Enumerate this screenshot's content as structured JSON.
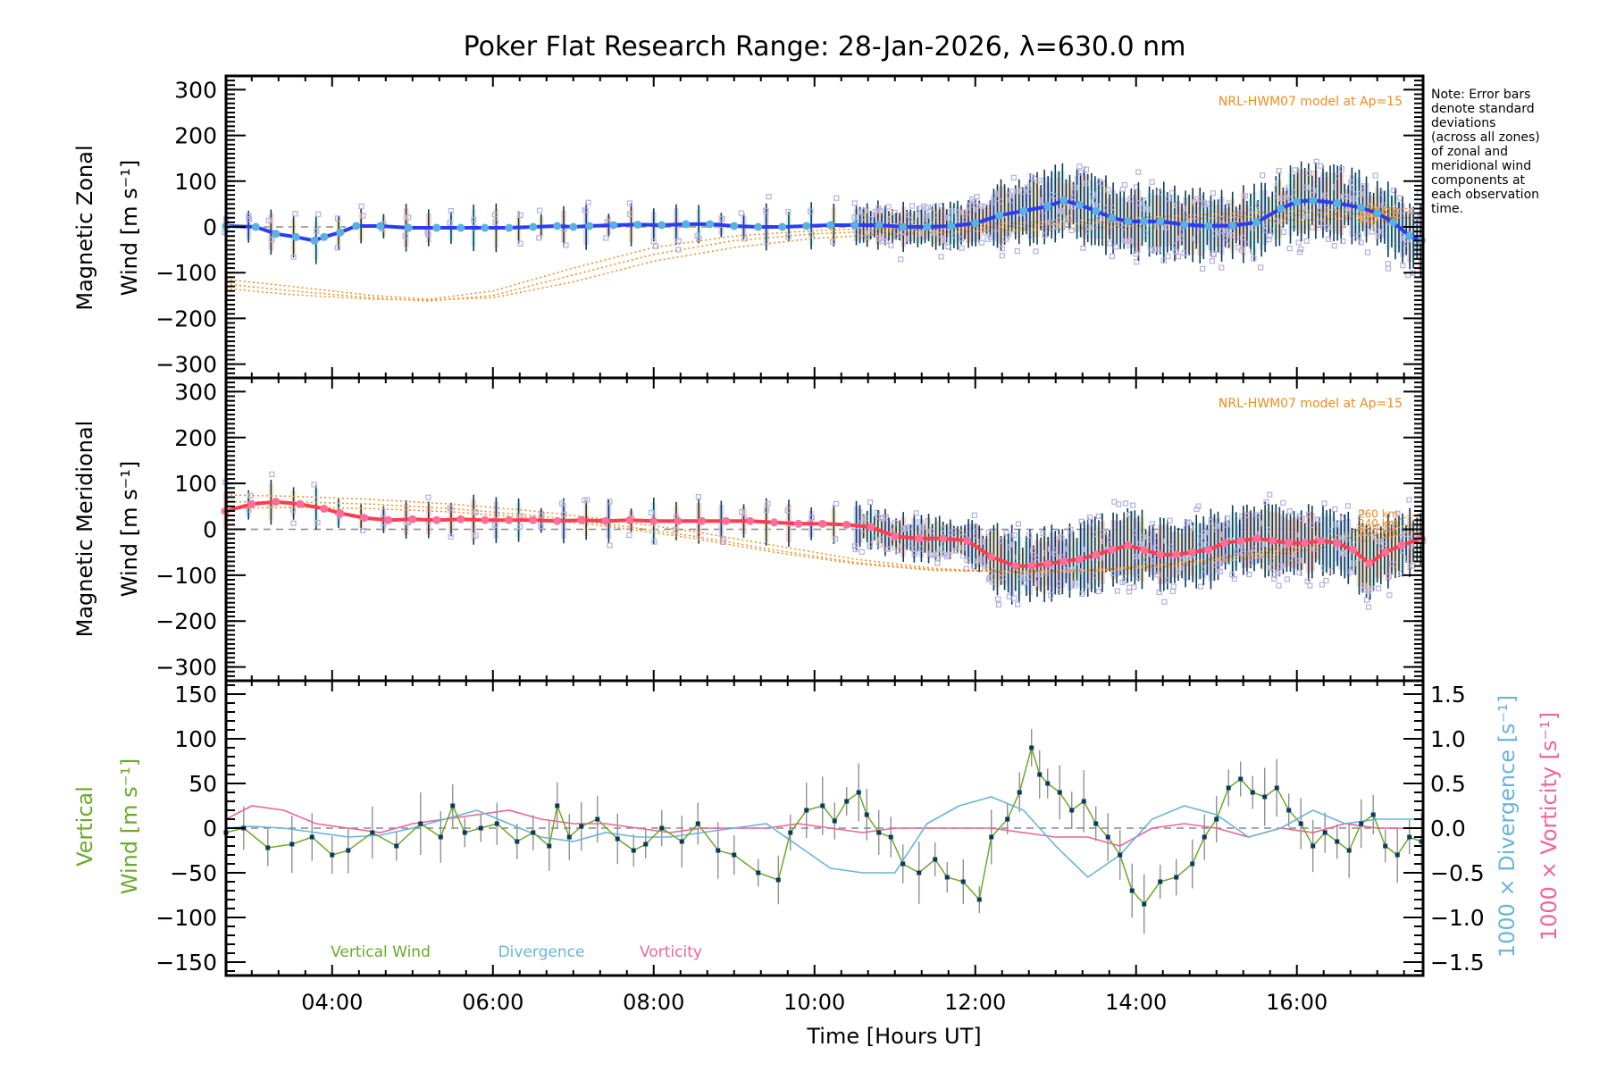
{
  "chart_data": [
    {
      "type": "line",
      "panel": "zonal",
      "title": "Poker Flat Research Range: 28-Jan-2026, λ=630.0 nm",
      "ylabel_line1": "Magnetic Zonal",
      "ylabel_line2": "Wind [m s⁻¹]",
      "ylim": [
        -330,
        330
      ],
      "yticks": [
        300,
        200,
        100,
        0,
        -100,
        -200,
        -300
      ],
      "model_label": "NRL-HWM07 model at Ap=15",
      "altitude_labels": [
        "260 km",
        "240 km",
        "220 km"
      ],
      "colors": {
        "mean": "#2a3cf5",
        "mean_marker": "#5ab0e0",
        "errorbar": "#0d3a5a",
        "zone_points": "#b4b0e0",
        "model": "#f08c1e"
      },
      "series": [
        {
          "name": "Mean zonal wind",
          "x": [
            2.68,
            3.05,
            3.3,
            3.55,
            3.78,
            3.9,
            4.1,
            4.3,
            4.6,
            4.95,
            5.3,
            5.6,
            5.9,
            6.2,
            6.5,
            6.8,
            7.0,
            7.2,
            7.5,
            7.8,
            8.1,
            8.4,
            8.7,
            9.0,
            9.3,
            9.6,
            9.9,
            10.2,
            10.5,
            10.8,
            11.1,
            11.4,
            11.7,
            12.0,
            12.3,
            12.6,
            12.9,
            13.1,
            13.3,
            13.5,
            13.7,
            13.9,
            14.1,
            14.3,
            14.6,
            14.9,
            15.2,
            15.5,
            15.8,
            16.0,
            16.2,
            16.5,
            16.8,
            17.0,
            17.2,
            17.4,
            17.55
          ],
          "y": [
            2,
            0,
            -15,
            -22,
            -30,
            -22,
            -12,
            2,
            2,
            -2,
            -2,
            -2,
            -2,
            -2,
            0,
            2,
            0,
            2,
            4,
            5,
            4,
            6,
            6,
            2,
            0,
            0,
            2,
            4,
            4,
            4,
            0,
            0,
            2,
            8,
            25,
            35,
            45,
            58,
            48,
            35,
            20,
            12,
            12,
            12,
            5,
            2,
            3,
            10,
            40,
            55,
            58,
            52,
            42,
            30,
            10,
            -20,
            -30
          ]
        },
        {
          "name": "NRL-HWM07 260 km",
          "x": [
            2.68,
            3.5,
            4.5,
            5.2,
            6.0,
            7.0,
            8.0,
            9.0,
            10.0,
            11.0,
            12.0,
            13.0,
            14.0,
            15.0,
            16.0,
            16.5,
            17.0,
            17.55
          ],
          "y": [
            -115,
            -130,
            -150,
            -158,
            -140,
            -90,
            -45,
            -20,
            -8,
            -2,
            5,
            12,
            20,
            28,
            35,
            38,
            40,
            40
          ]
        },
        {
          "name": "NRL-HWM07 240 km",
          "x": [
            2.68,
            3.5,
            4.5,
            5.2,
            6.0,
            7.0,
            8.0,
            9.0,
            10.0,
            11.0,
            12.0,
            13.0,
            14.0,
            15.0,
            16.0,
            16.5,
            17.0,
            17.55
          ],
          "y": [
            -125,
            -140,
            -155,
            -162,
            -150,
            -105,
            -60,
            -30,
            -15,
            -8,
            -2,
            5,
            12,
            20,
            25,
            28,
            30,
            30
          ]
        },
        {
          "name": "NRL-HWM07 220 km",
          "x": [
            2.68,
            3.5,
            4.5,
            5.2,
            6.0,
            7.0,
            8.0,
            9.0,
            10.0,
            11.0,
            12.0,
            13.0,
            14.0,
            15.0,
            16.0,
            16.5,
            17.0,
            17.55
          ],
          "y": [
            -135,
            -148,
            -158,
            -160,
            -155,
            -120,
            -75,
            -45,
            -25,
            -15,
            -10,
            -5,
            2,
            8,
            15,
            18,
            20,
            20
          ]
        }
      ]
    },
    {
      "type": "line",
      "panel": "meridional",
      "ylabel_line1": "Magnetic Meridional",
      "ylabel_line2": "Wind [m s⁻¹]",
      "ylim": [
        -330,
        330
      ],
      "yticks": [
        300,
        200,
        100,
        0,
        -100,
        -200,
        -300
      ],
      "model_label": "NRL-HWM07 model at Ap=15",
      "altitude_labels": [
        "260 km",
        "240 km",
        "220 km"
      ],
      "colors": {
        "mean": "#ff3c50",
        "mean_marker": "#ff6e96",
        "errorbar": "#0d3a5a",
        "zone_points": "#b4b0e0",
        "model": "#f08c1e"
      },
      "series": [
        {
          "name": "Mean meridional wind",
          "x": [
            2.68,
            3.0,
            3.3,
            3.6,
            3.9,
            4.1,
            4.4,
            4.7,
            5.0,
            5.3,
            5.6,
            5.9,
            6.2,
            6.5,
            6.8,
            7.1,
            7.4,
            7.7,
            8.0,
            8.3,
            8.6,
            8.9,
            9.2,
            9.5,
            9.8,
            10.1,
            10.4,
            10.7,
            11.0,
            11.3,
            11.6,
            11.9,
            12.2,
            12.5,
            12.7,
            12.9,
            13.1,
            13.3,
            13.5,
            13.7,
            13.9,
            14.1,
            14.3,
            14.5,
            14.7,
            14.9,
            15.1,
            15.3,
            15.5,
            15.7,
            15.9,
            16.1,
            16.3,
            16.5,
            16.7,
            16.9,
            17.1,
            17.3,
            17.55
          ],
          "y": [
            40,
            55,
            60,
            55,
            45,
            35,
            25,
            20,
            22,
            20,
            22,
            20,
            20,
            20,
            18,
            20,
            18,
            20,
            18,
            18,
            18,
            18,
            18,
            15,
            12,
            12,
            10,
            5,
            -15,
            -20,
            -20,
            -25,
            -60,
            -80,
            -80,
            -75,
            -70,
            -65,
            -55,
            -45,
            -35,
            -45,
            -55,
            -55,
            -50,
            -45,
            -30,
            -25,
            -20,
            -25,
            -30,
            -30,
            -25,
            -30,
            -45,
            -75,
            -50,
            -35,
            -20
          ]
        },
        {
          "name": "NRL-HWM07 260 km",
          "x": [
            2.68,
            3.5,
            4.5,
            5.5,
            6.5,
            7.5,
            8.5,
            9.5,
            10.5,
            11.5,
            12.5,
            13.5,
            14.5,
            15.5,
            16.5,
            17.55
          ],
          "y": [
            75,
            72,
            65,
            55,
            40,
            20,
            -5,
            -35,
            -65,
            -85,
            -95,
            -90,
            -75,
            -50,
            -15,
            35
          ]
        },
        {
          "name": "NRL-HWM07 240 km",
          "x": [
            2.68,
            3.5,
            4.5,
            5.5,
            6.5,
            7.5,
            8.5,
            9.5,
            10.5,
            11.5,
            12.5,
            13.5,
            14.5,
            15.5,
            16.5,
            17.55
          ],
          "y": [
            60,
            60,
            55,
            45,
            30,
            10,
            -15,
            -45,
            -72,
            -88,
            -92,
            -88,
            -75,
            -55,
            -25,
            15
          ]
        },
        {
          "name": "NRL-HWM07 220 km",
          "x": [
            2.68,
            3.5,
            4.5,
            5.5,
            6.5,
            7.5,
            8.5,
            9.5,
            10.5,
            11.5,
            12.5,
            13.5,
            14.5,
            15.5,
            16.5,
            17.55
          ],
          "y": [
            45,
            48,
            45,
            38,
            25,
            5,
            -20,
            -50,
            -75,
            -90,
            -92,
            -90,
            -80,
            -62,
            -35,
            -5
          ]
        }
      ]
    },
    {
      "type": "line",
      "panel": "vertical",
      "xlabel": "Time [Hours UT]",
      "xlim": [
        2.68,
        17.57
      ],
      "xticks": [
        "04:00",
        "06:00",
        "08:00",
        "10:00",
        "12:00",
        "14:00",
        "16:00"
      ],
      "xtick_values": [
        4,
        6,
        8,
        10,
        12,
        14,
        16
      ],
      "ylabel_line1": "Vertical",
      "ylabel_line2": "Wind [m s⁻¹]",
      "ylim": [
        -165,
        165
      ],
      "yticks": [
        150,
        100,
        50,
        0,
        -50,
        -100,
        -150
      ],
      "y2label_divergence": "1000 × Divergence [s⁻¹]",
      "y2label_vorticity": "1000 × Vorticity [s⁻¹]",
      "y2lim": [
        -1.65,
        1.65
      ],
      "y2ticks": [
        "1.5",
        "1.0",
        "0.5",
        "0.0",
        "−0.5",
        "−1.0",
        "−1.5"
      ],
      "legend": [
        {
          "label": "Vertical Wind",
          "color": "#6aaa2a"
        },
        {
          "label": "Divergence",
          "color": "#6ab4dc"
        },
        {
          "label": "Vorticity",
          "color": "#f06496"
        }
      ],
      "legend_position": "bottom-left",
      "series": [
        {
          "name": "Vertical Wind",
          "x": [
            2.68,
            2.9,
            3.2,
            3.5,
            3.75,
            4.0,
            4.2,
            4.5,
            4.8,
            5.1,
            5.35,
            5.5,
            5.65,
            5.85,
            6.05,
            6.3,
            6.5,
            6.7,
            6.8,
            6.95,
            7.1,
            7.3,
            7.55,
            7.75,
            7.9,
            8.1,
            8.35,
            8.55,
            8.8,
            9.0,
            9.3,
            9.55,
            9.7,
            9.9,
            10.1,
            10.25,
            10.4,
            10.55,
            10.65,
            10.8,
            10.95,
            11.1,
            11.3,
            11.5,
            11.65,
            11.85,
            12.05,
            12.2,
            12.4,
            12.55,
            12.7,
            12.8,
            12.9,
            13.05,
            13.2,
            13.35,
            13.5,
            13.65,
            13.8,
            13.95,
            14.1,
            14.3,
            14.5,
            14.7,
            14.85,
            15.0,
            15.15,
            15.3,
            15.45,
            15.6,
            15.75,
            15.9,
            16.05,
            16.2,
            16.35,
            16.5,
            16.65,
            16.8,
            16.95,
            17.1,
            17.25,
            17.4,
            17.55
          ],
          "y": [
            -5,
            0,
            -22,
            -18,
            -10,
            -30,
            -25,
            -5,
            -20,
            5,
            -10,
            25,
            -5,
            0,
            5,
            -15,
            -5,
            -20,
            25,
            -10,
            2,
            10,
            -12,
            -25,
            -18,
            0,
            -15,
            5,
            -25,
            -30,
            -50,
            -58,
            -5,
            20,
            25,
            8,
            30,
            40,
            15,
            -5,
            -10,
            -40,
            -50,
            -35,
            -55,
            -60,
            -80,
            -10,
            10,
            40,
            90,
            60,
            50,
            40,
            20,
            30,
            5,
            -10,
            -30,
            -70,
            -85,
            -60,
            -55,
            -40,
            -10,
            10,
            45,
            55,
            40,
            35,
            45,
            20,
            5,
            -20,
            -5,
            -15,
            -25,
            5,
            15,
            -20,
            -30,
            -10,
            -15
          ]
        },
        {
          "name": "Divergence",
          "scale": "y2",
          "x": [
            2.68,
            3.0,
            3.4,
            3.8,
            4.2,
            4.6,
            5.0,
            5.4,
            5.8,
            6.2,
            6.6,
            7.0,
            7.4,
            7.8,
            8.2,
            8.6,
            9.0,
            9.4,
            9.8,
            10.2,
            10.6,
            11.0,
            11.4,
            11.8,
            12.2,
            12.6,
            13.0,
            13.4,
            13.8,
            14.2,
            14.6,
            15.0,
            15.4,
            15.8,
            16.2,
            16.6,
            17.0,
            17.3,
            17.55
          ],
          "y": [
            0.0,
            0.02,
            0.0,
            -0.05,
            -0.1,
            -0.08,
            0.0,
            0.1,
            0.2,
            0.05,
            -0.1,
            -0.15,
            -0.05,
            -0.1,
            -0.1,
            -0.05,
            0.0,
            0.05,
            -0.2,
            -0.45,
            -0.5,
            -0.5,
            0.05,
            0.25,
            0.35,
            0.2,
            -0.2,
            -0.55,
            -0.3,
            0.1,
            0.25,
            0.15,
            -0.1,
            0.0,
            0.2,
            0.05,
            0.1,
            0.1,
            0.1
          ]
        },
        {
          "name": "Vorticity",
          "scale": "y2",
          "x": [
            2.68,
            3.0,
            3.4,
            3.8,
            4.2,
            4.6,
            5.0,
            5.4,
            5.8,
            6.2,
            6.6,
            7.0,
            7.4,
            7.8,
            8.2,
            8.6,
            9.0,
            9.4,
            9.8,
            10.2,
            10.6,
            11.0,
            11.4,
            11.8,
            12.2,
            12.6,
            13.0,
            13.4,
            13.8,
            14.2,
            14.6,
            15.0,
            15.4,
            15.8,
            16.2,
            16.6,
            17.0,
            17.3,
            17.55
          ],
          "y": [
            0.1,
            0.25,
            0.2,
            0.05,
            0.0,
            -0.05,
            0.05,
            0.1,
            0.15,
            0.2,
            0.1,
            0.05,
            0.05,
            0.0,
            -0.05,
            0.0,
            0.0,
            0.0,
            0.05,
            0.0,
            -0.05,
            0.0,
            0.0,
            0.0,
            0.0,
            -0.05,
            -0.1,
            -0.1,
            -0.2,
            0.0,
            0.05,
            0.0,
            -0.1,
            0.0,
            -0.05,
            0.05,
            0.0,
            0.0,
            0.0
          ]
        }
      ]
    }
  ],
  "note": [
    "Note: Error bars",
    "denote standard",
    "deviations",
    "(across all zones)",
    "of zonal and",
    "meridional wind",
    "components at",
    "each observation",
    "time."
  ]
}
